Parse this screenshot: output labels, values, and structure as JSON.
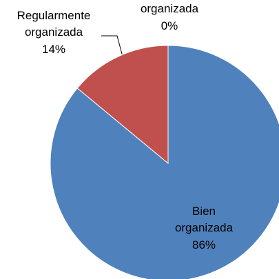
{
  "chart_data": {
    "type": "pie",
    "categories": [
      "Bien organizada",
      "Regularmente organizada",
      "organizada"
    ],
    "values": [
      86,
      14,
      0
    ],
    "value_labels": [
      "86%",
      "14%",
      "0%"
    ],
    "colors": [
      "#4f81bd",
      "#c0504d",
      "#9bbb59"
    ]
  }
}
